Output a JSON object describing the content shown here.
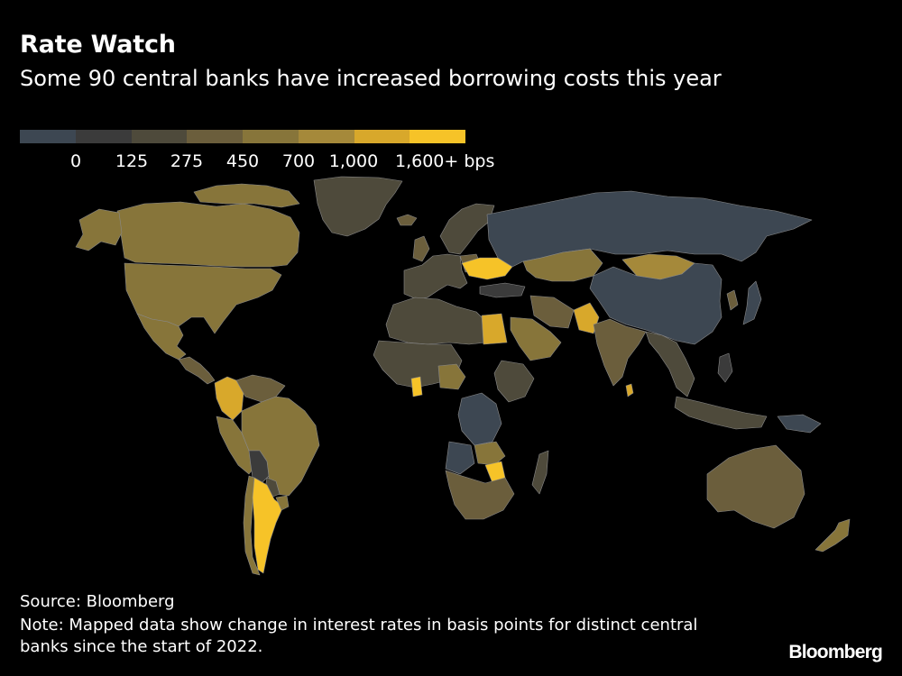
{
  "title": "Rate Watch",
  "subtitle": "Some 90 central banks have increased borrowing costs this year",
  "legend": {
    "colors": [
      "#3d4752",
      "#3b3b3b",
      "#4e4a3b",
      "#6b5e3c",
      "#87753a",
      "#a5893a",
      "#d8a82b",
      "#f6c328"
    ],
    "labels": [
      "0",
      "125",
      "275",
      "450",
      "700",
      "1,000",
      "1,600+ bps"
    ]
  },
  "map": {
    "style": "choropleth, dark background, thin grey country borders",
    "regions": [
      {
        "name": "Greenland",
        "tier": 2
      },
      {
        "name": "Canada",
        "tier": 4
      },
      {
        "name": "Alaska",
        "tier": 4
      },
      {
        "name": "Arctic islands",
        "tier": 4
      },
      {
        "name": "United States",
        "tier": 4
      },
      {
        "name": "Mexico",
        "tier": 4
      },
      {
        "name": "Central America",
        "tier": 3
      },
      {
        "name": "Colombia",
        "tier": 6
      },
      {
        "name": "Venezuela",
        "tier": 3
      },
      {
        "name": "Peru",
        "tier": 4
      },
      {
        "name": "Bolivia",
        "tier": 1
      },
      {
        "name": "Brazil",
        "tier": 4
      },
      {
        "name": "Paraguay",
        "tier": 2
      },
      {
        "name": "Chile",
        "tier": 4
      },
      {
        "name": "Argentina",
        "tier": 7
      },
      {
        "name": "Uruguay",
        "tier": 4
      },
      {
        "name": "Europe",
        "tier": 2
      },
      {
        "name": "Iceland",
        "tier": 3
      },
      {
        "name": "United Kingdom",
        "tier": 3
      },
      {
        "name": "Scandinavia",
        "tier": 2
      },
      {
        "name": "Poland",
        "tier": 3
      },
      {
        "name": "Ukraine",
        "tier": 7
      },
      {
        "name": "Turkey",
        "tier": 1
      },
      {
        "name": "Russia",
        "tier": 0
      },
      {
        "name": "Kazakhstan",
        "tier": 4
      },
      {
        "name": "Mongolia",
        "tier": 5
      },
      {
        "name": "China",
        "tier": 0
      },
      {
        "name": "Japan",
        "tier": 0
      },
      {
        "name": "Korea",
        "tier": 3
      },
      {
        "name": "Iran",
        "tier": 3
      },
      {
        "name": "Pakistan",
        "tier": 6
      },
      {
        "name": "India",
        "tier": 3
      },
      {
        "name": "Sri Lanka",
        "tier": 6
      },
      {
        "name": "Saudi Arabia",
        "tier": 4
      },
      {
        "name": "Egypt",
        "tier": 6
      },
      {
        "name": "North Africa",
        "tier": 2
      },
      {
        "name": "West Africa",
        "tier": 2
      },
      {
        "name": "Nigeria",
        "tier": 4
      },
      {
        "name": "Ghana",
        "tier": 7
      },
      {
        "name": "Ethiopia",
        "tier": 2
      },
      {
        "name": "DR Congo",
        "tier": 0
      },
      {
        "name": "Angola",
        "tier": 0
      },
      {
        "name": "Zambia",
        "tier": 4
      },
      {
        "name": "Zimbabwe",
        "tier": 7
      },
      {
        "name": "Southern Africa",
        "tier": 3
      },
      {
        "name": "Madagascar",
        "tier": 2
      },
      {
        "name": "Southeast Asia",
        "tier": 2
      },
      {
        "name": "Indonesia",
        "tier": 2
      },
      {
        "name": "Philippines",
        "tier": 1
      },
      {
        "name": "Papua New Guinea",
        "tier": 0
      },
      {
        "name": "Australia",
        "tier": 3
      },
      {
        "name": "New Zealand",
        "tier": 4
      }
    ]
  },
  "source": "Source: Bloomberg",
  "note": "Note: Mapped data show change in interest rates in basis points for distinct central banks since the start of 2022.",
  "logo": "Bloomberg"
}
